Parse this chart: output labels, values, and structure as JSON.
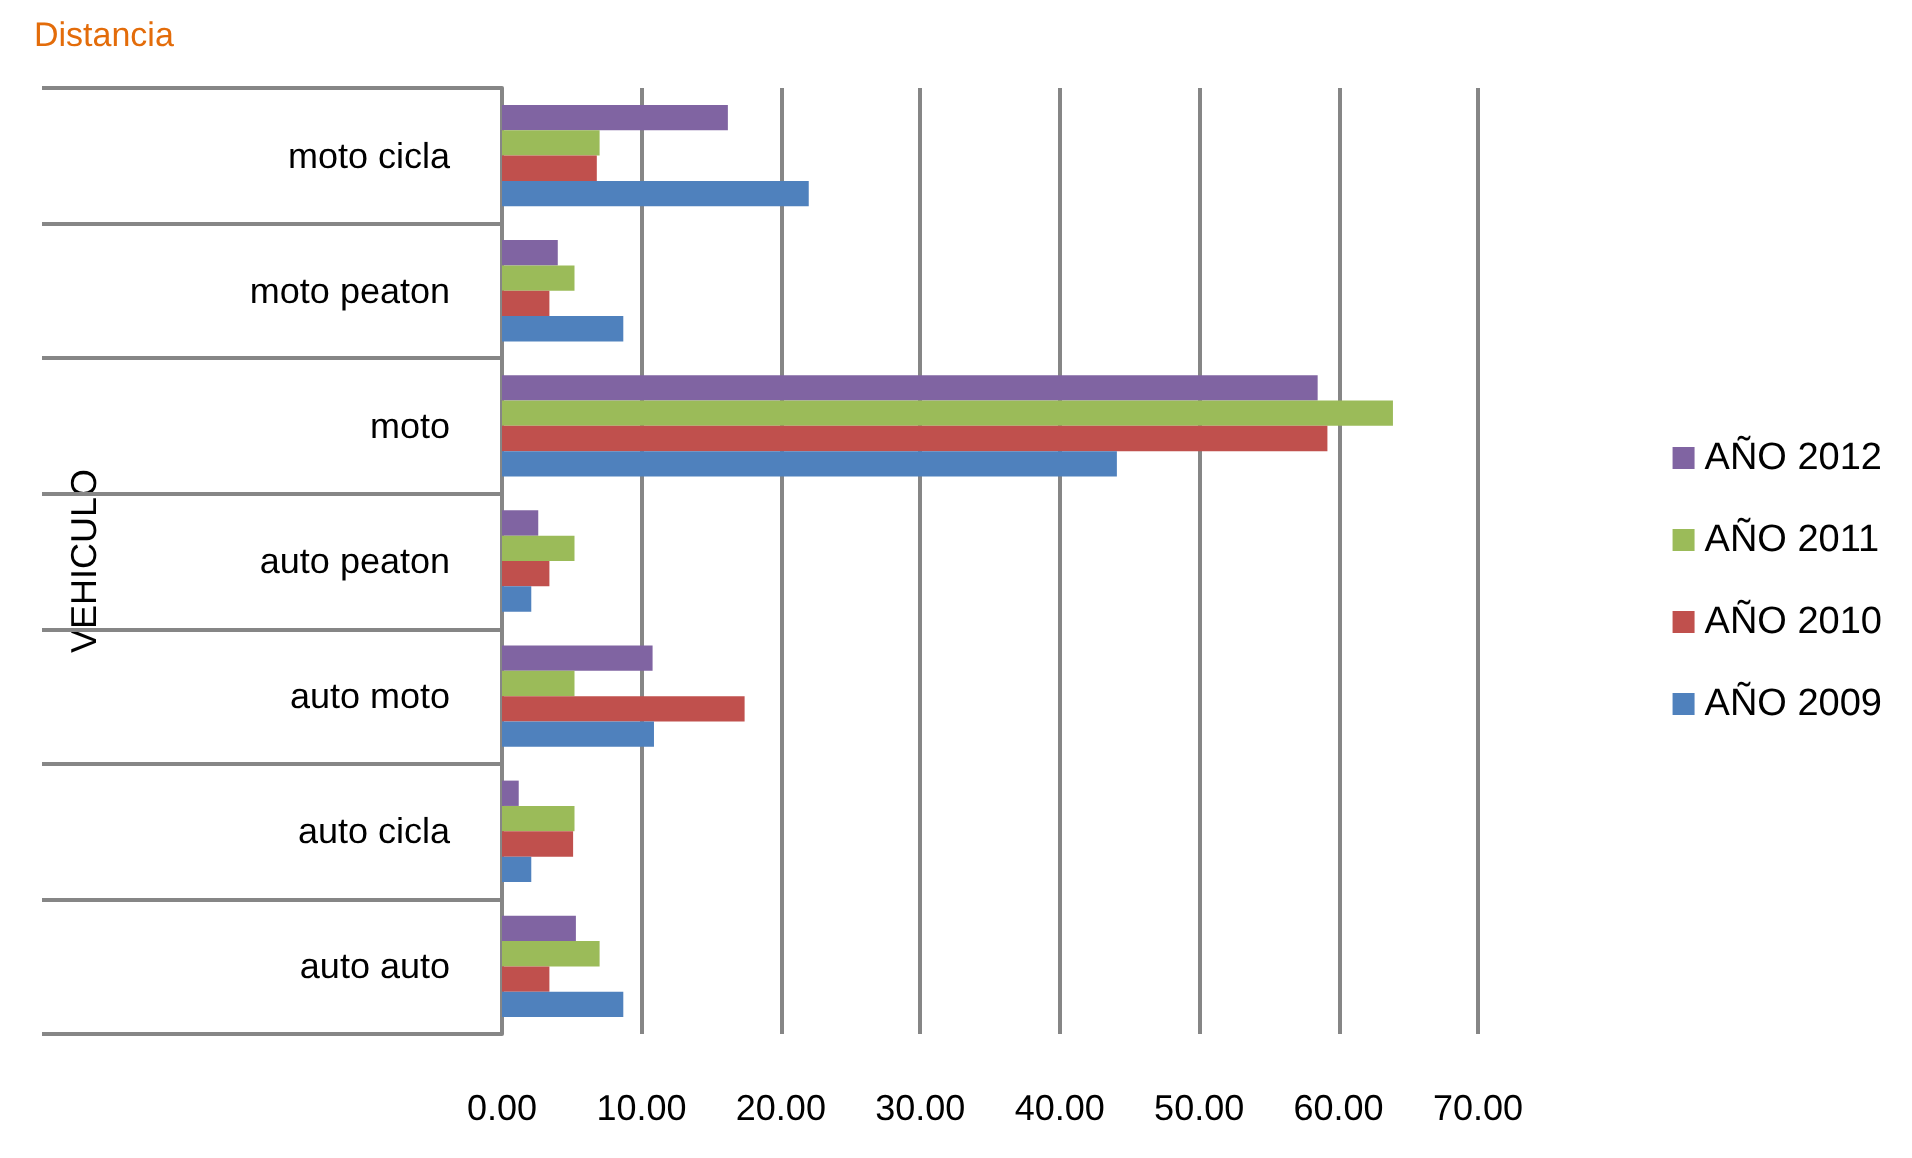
{
  "chart_data": {
    "type": "bar",
    "orientation": "horizontal",
    "title": "Distancia",
    "ylabel": "VEHICULO",
    "categories": [
      "moto cicla",
      "moto peaton",
      "moto",
      "auto peaton",
      "auto moto",
      "auto cicla",
      "auto auto"
    ],
    "series": [
      {
        "name": "AÑO 2012",
        "color": "#8064a2",
        "values": [
          16.2,
          4.0,
          58.5,
          2.6,
          10.8,
          1.2,
          5.3
        ]
      },
      {
        "name": "AÑO 2011",
        "color": "#9bbb59",
        "values": [
          7.0,
          5.2,
          63.9,
          5.2,
          5.2,
          5.2,
          7.0
        ]
      },
      {
        "name": "AÑO 2010",
        "color": "#c0504d",
        "values": [
          6.8,
          3.4,
          59.2,
          3.4,
          17.4,
          5.1,
          3.4
        ]
      },
      {
        "name": "AÑO 2009",
        "color": "#4f81bd",
        "values": [
          22.0,
          8.7,
          44.1,
          2.1,
          10.9,
          2.1,
          8.7
        ]
      }
    ],
    "xlim": [
      0,
      70
    ],
    "xticks": [
      {
        "value": 0,
        "label": "0.00"
      },
      {
        "value": 10,
        "label": "10.00"
      },
      {
        "value": 20,
        "label": "20.00"
      },
      {
        "value": 30,
        "label": "30.00"
      },
      {
        "value": 40,
        "label": "40.00"
      },
      {
        "value": 50,
        "label": "50.00"
      },
      {
        "value": 60,
        "label": "60.00"
      },
      {
        "value": 70,
        "label": "70.00"
      }
    ],
    "grid": "x",
    "legend": "right"
  }
}
